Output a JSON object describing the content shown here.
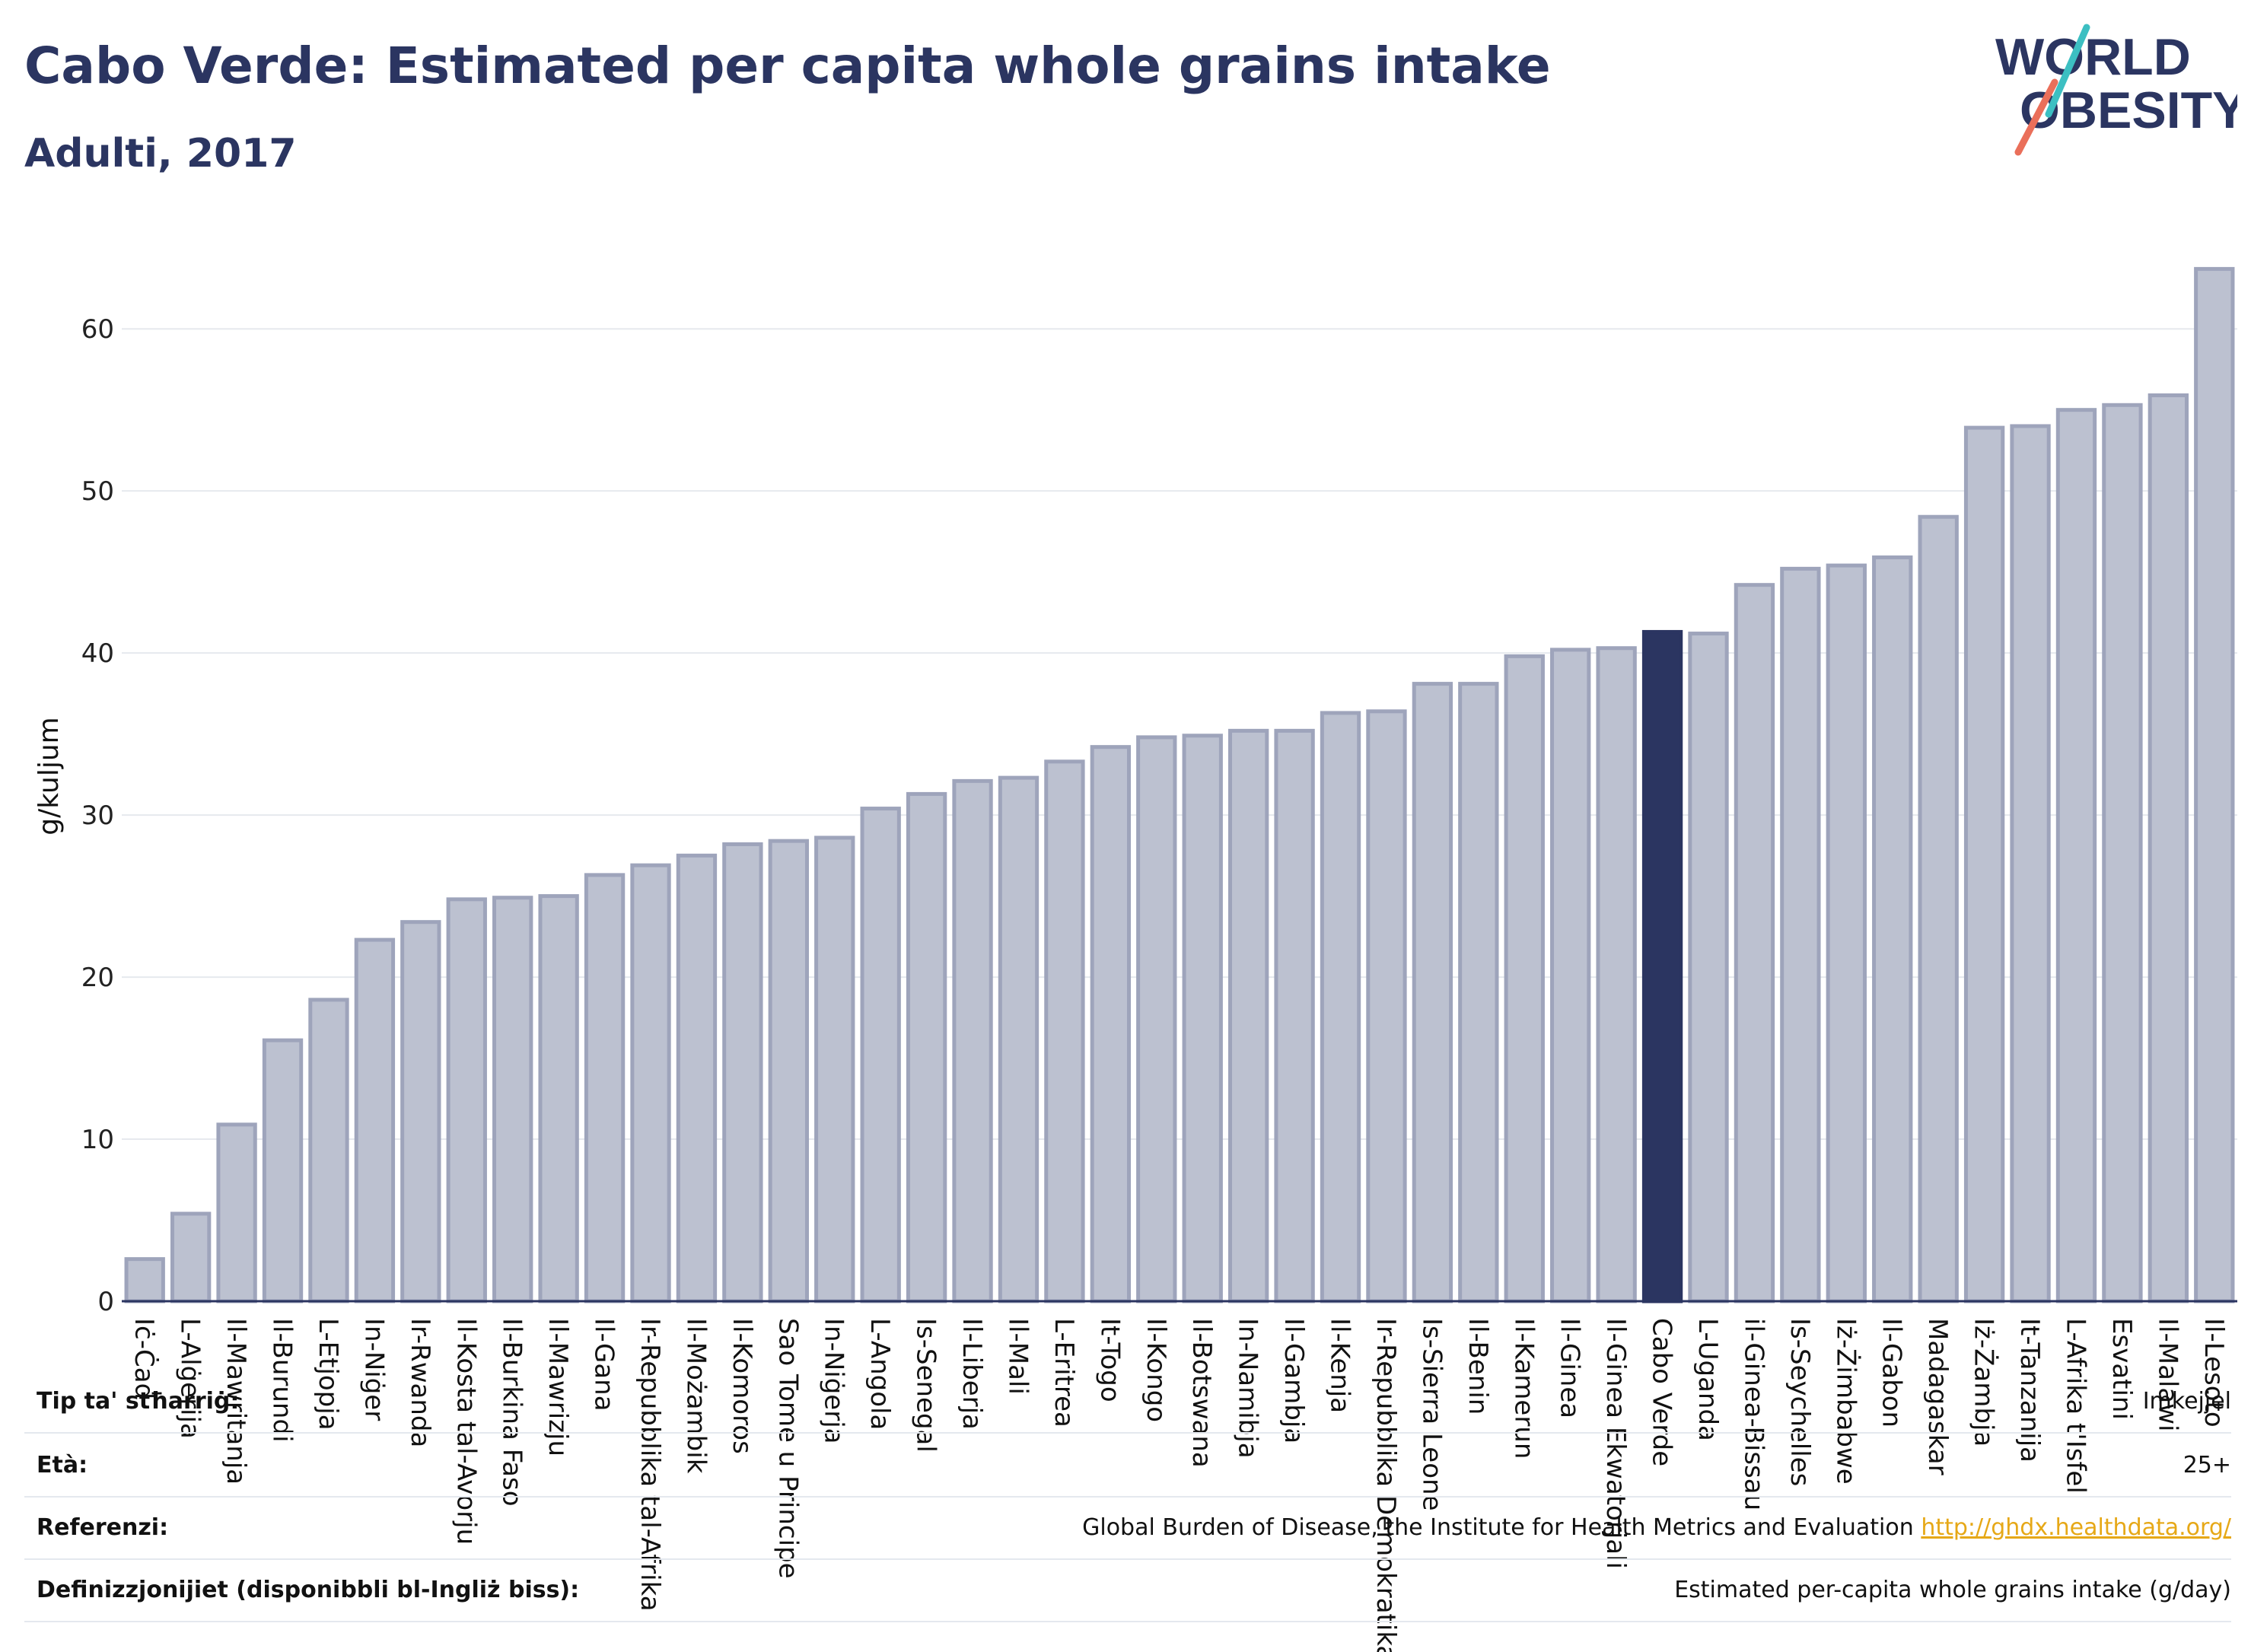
{
  "header": {
    "title": "Cabo Verde: Estimated per capita whole grains intake",
    "subtitle": "Adulti, 2017"
  },
  "logo": {
    "line1": "WORLD",
    "line2": "OBESITY"
  },
  "colors": {
    "bar": "#bcc1d0",
    "bar_edge": "#9ea4bb",
    "highlight": "#2b3561",
    "text": "#2b3561",
    "grid": "#e6e9ee",
    "logo_accent_teal": "#3cbfc2",
    "logo_accent_coral": "#ea6f5a"
  },
  "chart_data": {
    "type": "bar",
    "ylabel": "g/kuljum",
    "xlabel": "",
    "ylim": [
      0,
      64
    ],
    "yticks": [
      0,
      10,
      20,
      30,
      40,
      50,
      60
    ],
    "grid": true,
    "highlight": "Cabo Verde",
    "categories": [
      "Iċ-Ċad",
      "L-Alġerija",
      "Il-Mawritanja",
      "Il-Burundi",
      "L-Etjopja",
      "In-Niġer",
      "Ir-Rwanda",
      "Il-Kosta tal-Avorju",
      "Il-Burkina Faso",
      "Il-Mawrizju",
      "Il-Gana",
      "Ir-Repubblika tal-Afrika",
      "Il-Możambik",
      "Il-Komoros",
      "Sao Tome u Principe",
      "In-Niġerja",
      "L-Angola",
      "Is-Senegal",
      "Il-Liberja",
      "Il-Mali",
      "L-Eritrea",
      "It-Togo",
      "Il-Kongo",
      "Il-Botswana",
      "In-Namibja",
      "Il-Gambja",
      "Il-Kenja",
      "Ir-Repubblika Demokratika",
      "Is-Sierra Leone",
      "Il-Benin",
      "Il-Kamerun",
      "Il-Ginea",
      "Il-Ginea Ekwatorjali",
      "Cabo Verde",
      "L-Uganda",
      "il-Ginea-Bissau",
      "Is-Seychelles",
      "Iż-Żimbabwe",
      "Il-Gabon",
      "Madagaskar",
      "Iż-Żambja",
      "It-Tanzanija",
      "L-Afrika t'Isfel",
      "Esvatini",
      "Il-Malawi",
      "Il-Lesoto"
    ],
    "values": [
      2.6,
      5.4,
      10.9,
      16.1,
      18.6,
      22.3,
      23.4,
      24.8,
      24.9,
      25.0,
      26.3,
      26.9,
      27.5,
      28.2,
      28.4,
      28.6,
      30.4,
      31.3,
      32.1,
      32.3,
      33.3,
      34.2,
      34.8,
      34.9,
      35.2,
      35.2,
      36.3,
      36.4,
      38.1,
      38.1,
      39.8,
      40.2,
      40.3,
      41.3,
      41.2,
      44.2,
      45.2,
      45.4,
      45.9,
      48.4,
      53.9,
      54.0,
      55.0,
      55.3,
      55.9,
      63.7
    ]
  },
  "meta": {
    "rows": [
      {
        "label": "Tip ta' stħarriġ:",
        "value": "Imkejjel"
      },
      {
        "label": "Età:",
        "value": "25+"
      },
      {
        "label": "Referenzi:",
        "value": "Global Burden of Disease, the Institute for Health Metrics and Evaluation",
        "link": "http://ghdx.healthdata.org/"
      },
      {
        "label": "Definizzjonijiet (disponibbli bl-Ingliż biss):",
        "value": "Estimated per-capita whole grains intake (g/day)"
      }
    ]
  }
}
